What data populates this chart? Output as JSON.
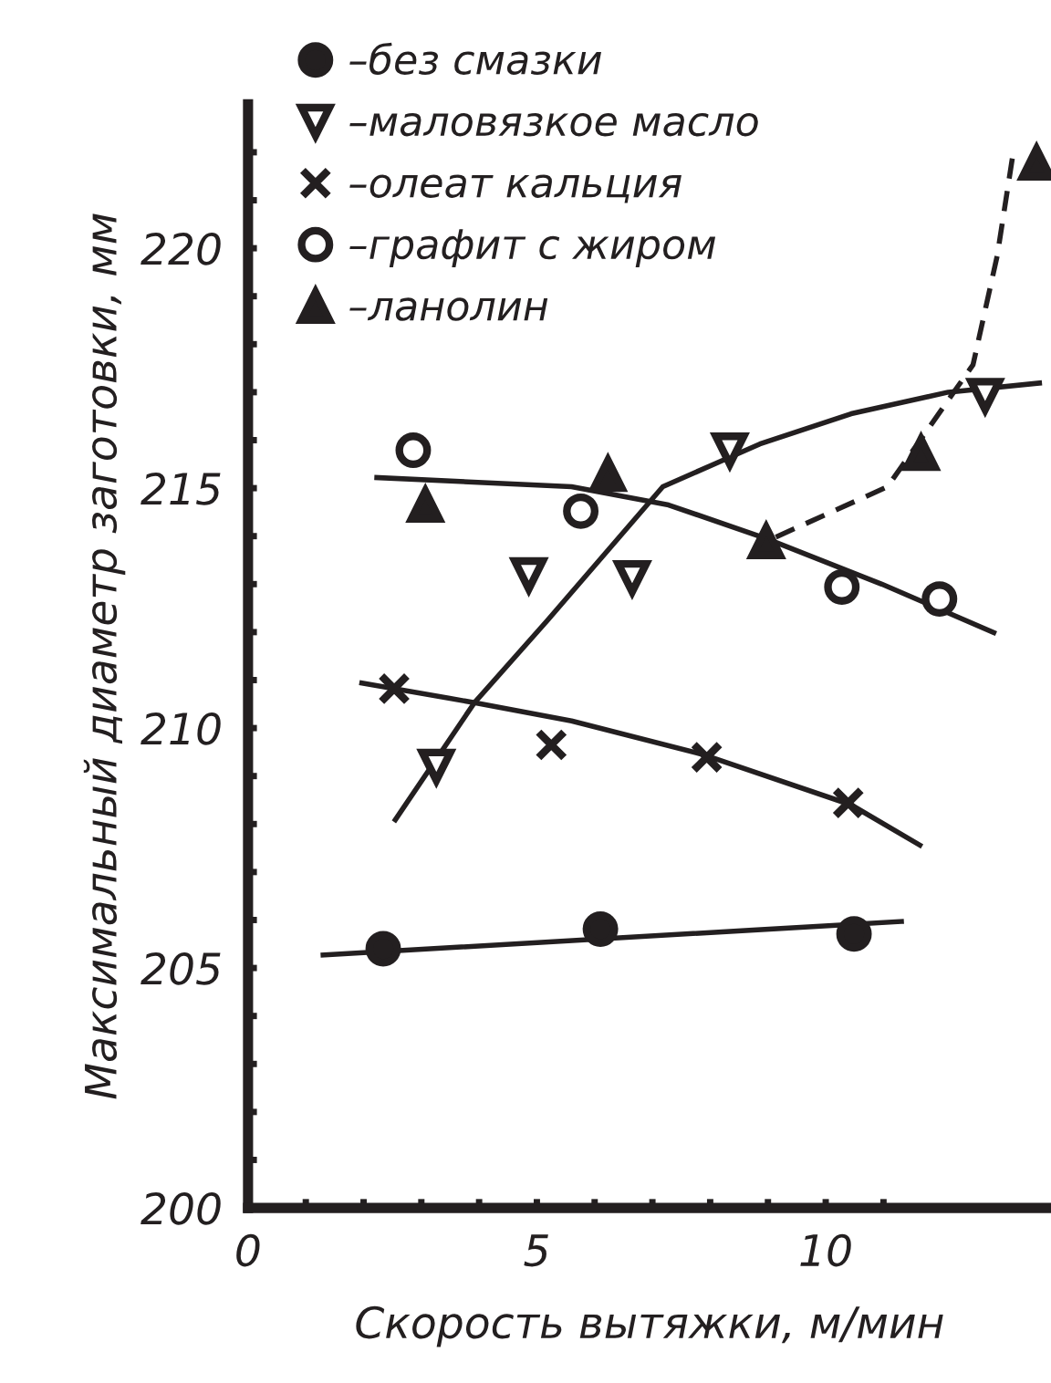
{
  "chart_data": {
    "type": "scatter",
    "xlabel": "Скорость вытяжки, м/мин",
    "ylabel": "Максимальный диаметр заготовки, мм",
    "xlim": [
      0,
      13.9
    ],
    "ylim": [
      200,
      223
    ],
    "xticks": [
      0,
      {
        "value": 1,
        "label": null
      },
      {
        "value": 2,
        "label": null
      },
      {
        "value": 3,
        "label": null
      },
      {
        "value": 4,
        "label": null
      },
      5,
      {
        "value": 6,
        "label": null
      },
      {
        "value": 7,
        "label": null
      },
      {
        "value": 8,
        "label": null
      },
      {
        "value": 9,
        "label": null
      },
      10,
      {
        "value": 11,
        "label": null
      }
    ],
    "yticks": [
      200,
      {
        "value": 201,
        "label": null
      },
      {
        "value": 202,
        "label": null
      },
      {
        "value": 203,
        "label": null
      },
      {
        "value": 204,
        "label": null
      },
      205,
      {
        "value": 206,
        "label": null
      },
      {
        "value": 207,
        "label": null
      },
      {
        "value": 208,
        "label": null
      },
      {
        "value": 209,
        "label": null
      },
      210,
      {
        "value": 211,
        "label": null
      },
      {
        "value": 212,
        "label": null
      },
      {
        "value": 213,
        "label": null
      },
      {
        "value": 214,
        "label": null
      },
      215,
      {
        "value": 216,
        "label": null
      },
      {
        "value": 217,
        "label": null
      },
      {
        "value": 218,
        "label": null
      },
      {
        "value": 219,
        "label": null
      },
      220,
      {
        "value": 221,
        "label": null
      },
      {
        "value": 222,
        "label": null
      }
    ],
    "grid": false,
    "legend": "top",
    "series": [
      {
        "name": "–без смазки",
        "marker": "circle",
        "color": "#231f20",
        "x": [
          2.34,
          6.1,
          10.49
        ],
        "values": [
          205.4,
          205.81,
          205.71
        ]
      },
      {
        "name": "–маловязкое масло",
        "marker": "triangle_down",
        "color": "#231f20",
        "x": [
          3.26,
          4.86,
          6.65,
          8.34,
          12.76
        ],
        "values": [
          209.2,
          213.19,
          213.13,
          215.79,
          216.93
        ]
      },
      {
        "name": "–олеат кальция",
        "marker": "cross",
        "color": "#231f20",
        "x": [
          2.53,
          5.25,
          7.94,
          10.39
        ],
        "values": [
          210.82,
          209.65,
          209.39,
          208.44
        ]
      },
      {
        "name": "–графит с жиром",
        "marker": "circle_open",
        "color": "#231f20",
        "x": [
          2.86,
          5.76,
          10.28,
          11.97
        ],
        "values": [
          215.79,
          214.52,
          212.94,
          212.69
        ]
      },
      {
        "name": "–ланолин",
        "marker": "triangle",
        "color": "#231f20",
        "x": [
          3.07,
          6.23,
          8.97,
          11.65,
          13.65
        ],
        "values": [
          214.65,
          215.29,
          213.89,
          215.73,
          221.78
        ]
      },
      {
        "type": "line",
        "line_style": "solid",
        "color": "#231f20",
        "x": [
          1.3,
          11.31
        ],
        "values": [
          205.27,
          205.97
        ]
      },
      {
        "type": "line",
        "line_style": "solid",
        "color": "#231f20",
        "x": [
          1.97,
          3.92,
          5.6,
          7.9,
          10.44,
          11.63
        ],
        "values": [
          210.94,
          210.53,
          210.15,
          209.44,
          208.4,
          207.56
        ]
      },
      {
        "type": "line",
        "line_style": "solid",
        "color": "#231f20",
        "x": [
          2.55,
          3.92,
          5.18,
          7.18,
          8.86,
          10.44,
          12.12,
          13.7
        ],
        "values": [
          208.09,
          210.53,
          212.24,
          215.03,
          215.92,
          216.55,
          217.0,
          217.19
        ]
      },
      {
        "type": "line",
        "line_style": "solid",
        "color": "#231f20",
        "x": [
          2.23,
          5.6,
          7.28,
          8.97,
          10.97,
          12.91
        ],
        "values": [
          215.22,
          215.03,
          214.65,
          213.95,
          213.0,
          211.99
        ]
      },
      {
        "type": "line",
        "line_style": "dashed",
        "color": "#231f20",
        "x": [
          8.97,
          11.07,
          12.55,
          12.97,
          13.23
        ],
        "values": [
          213.89,
          215.03,
          217.57,
          219.85,
          221.87
        ]
      }
    ]
  }
}
